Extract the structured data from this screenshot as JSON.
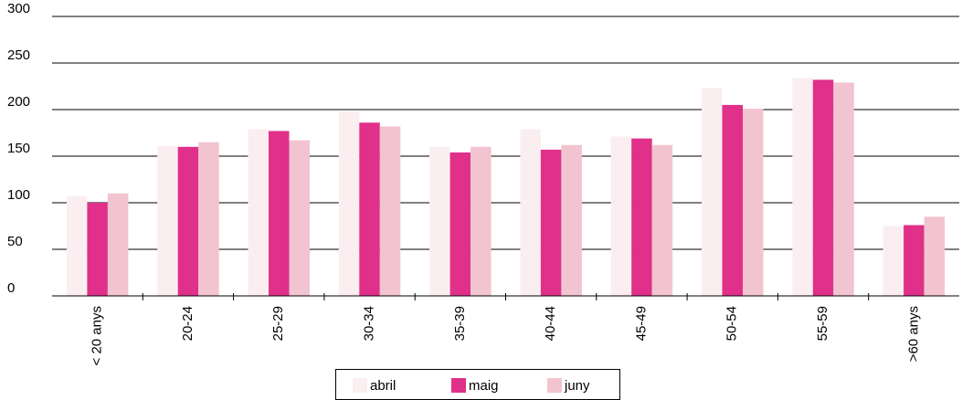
{
  "chart_data": {
    "type": "bar",
    "categories": [
      "< 20 anys",
      "20-24",
      "25-29",
      "30-34",
      "35-39",
      "40-44",
      "45-49",
      "50-54",
      "55-59",
      ">60 anys"
    ],
    "series": [
      {
        "name": "abril",
        "color": "#fbeef0",
        "values": [
          107,
          161,
          179,
          198,
          160,
          179,
          171,
          223,
          234,
          75
        ]
      },
      {
        "name": "maig",
        "color": "#e0308a",
        "values": [
          100,
          160,
          177,
          186,
          154,
          157,
          169,
          205,
          232,
          76
        ]
      },
      {
        "name": "juny",
        "color": "#f2c4d0",
        "values": [
          110,
          165,
          167,
          182,
          160,
          162,
          162,
          201,
          229,
          85
        ]
      }
    ],
    "ylim": [
      0,
      300
    ],
    "yticks": [
      0,
      50,
      100,
      150,
      200,
      250,
      300
    ],
    "grid": true
  }
}
